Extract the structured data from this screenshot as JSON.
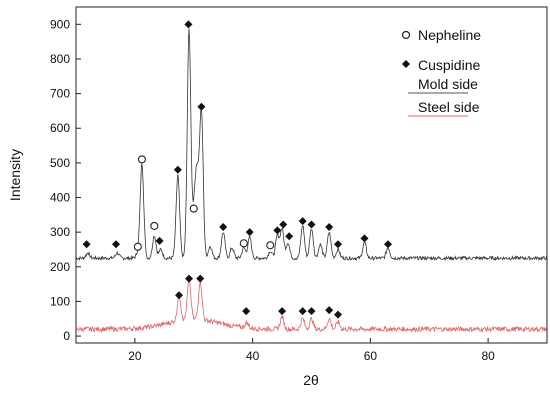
{
  "chart_data": {
    "type": "line",
    "xlabel": "2θ",
    "ylabel": "Intensity",
    "xlim": [
      10,
      90
    ],
    "ylim": [
      -20,
      950
    ],
    "x_ticks": [
      20,
      40,
      60,
      80
    ],
    "x_tick_labels": [
      "20",
      "40",
      "60",
      "80"
    ],
    "y_ticks": [
      0,
      100,
      200,
      300,
      400,
      500,
      600,
      700,
      800,
      900
    ],
    "y_tick_labels": [
      "0",
      "100",
      "200",
      "300",
      "400",
      "500",
      "600",
      "700",
      "800",
      "900"
    ],
    "grid": false,
    "legend_position": "top-right",
    "legend": [
      {
        "label": "Nepheline",
        "marker": "open-circle"
      },
      {
        "label": "Cuspidine",
        "marker": "filled-diamond"
      },
      {
        "label": "Mold side",
        "line_color": "#555555"
      },
      {
        "label": "Steel side",
        "line_color": "#e06666"
      }
    ],
    "series": [
      {
        "name": "Mold side",
        "color": "#333333",
        "baseline": 225,
        "peaks": [
          {
            "x": 12.0,
            "y": 240
          },
          {
            "x": 17.0,
            "y": 240
          },
          {
            "x": 20.5,
            "y": 238
          },
          {
            "x": 21.2,
            "y": 500
          },
          {
            "x": 23.3,
            "y": 290
          },
          {
            "x": 24.4,
            "y": 250
          },
          {
            "x": 27.3,
            "y": 465
          },
          {
            "x": 29.2,
            "y": 890
          },
          {
            "x": 30.1,
            "y": 360
          },
          {
            "x": 30.6,
            "y": 440
          },
          {
            "x": 31.3,
            "y": 645
          },
          {
            "x": 32.8,
            "y": 260
          },
          {
            "x": 35.0,
            "y": 300
          },
          {
            "x": 36.5,
            "y": 255
          },
          {
            "x": 38.5,
            "y": 255
          },
          {
            "x": 39.5,
            "y": 285
          },
          {
            "x": 43.0,
            "y": 245
          },
          {
            "x": 44.2,
            "y": 290
          },
          {
            "x": 45.0,
            "y": 310
          },
          {
            "x": 46.0,
            "y": 270
          },
          {
            "x": 48.5,
            "y": 320
          },
          {
            "x": 50.0,
            "y": 310
          },
          {
            "x": 51.5,
            "y": 265
          },
          {
            "x": 53.0,
            "y": 300
          },
          {
            "x": 54.5,
            "y": 250
          },
          {
            "x": 59.0,
            "y": 270
          },
          {
            "x": 63.0,
            "y": 255
          }
        ]
      },
      {
        "name": "Steel side",
        "color": "#e06666",
        "baseline": 20,
        "peaks": [
          {
            "x": 27.5,
            "y": 95
          },
          {
            "x": 29.2,
            "y": 135
          },
          {
            "x": 31.1,
            "y": 130
          },
          {
            "x": 39.0,
            "y": 35
          },
          {
            "x": 45.0,
            "y": 55
          },
          {
            "x": 48.5,
            "y": 50
          },
          {
            "x": 50.0,
            "y": 50
          },
          {
            "x": 53.0,
            "y": 50
          },
          {
            "x": 54.5,
            "y": 40
          }
        ]
      }
    ],
    "annotations": {
      "nepheline": [
        {
          "x": 21.2,
          "y": 510
        },
        {
          "x": 23.3,
          "y": 318
        },
        {
          "x": 20.5,
          "y": 258
        },
        {
          "x": 30.0,
          "y": 368
        },
        {
          "x": 38.5,
          "y": 268
        },
        {
          "x": 43.0,
          "y": 262
        }
      ],
      "cuspidine": [
        {
          "x": 11.8,
          "y": 265
        },
        {
          "x": 16.8,
          "y": 265
        },
        {
          "x": 24.2,
          "y": 275
        },
        {
          "x": 27.3,
          "y": 480
        },
        {
          "x": 29.1,
          "y": 900
        },
        {
          "x": 31.3,
          "y": 662
        },
        {
          "x": 35.0,
          "y": 315
        },
        {
          "x": 39.5,
          "y": 300
        },
        {
          "x": 44.2,
          "y": 305
        },
        {
          "x": 45.2,
          "y": 322
        },
        {
          "x": 46.2,
          "y": 288
        },
        {
          "x": 48.5,
          "y": 332
        },
        {
          "x": 50.0,
          "y": 322
        },
        {
          "x": 53.0,
          "y": 315
        },
        {
          "x": 54.5,
          "y": 265
        },
        {
          "x": 59.0,
          "y": 282
        },
        {
          "x": 63.0,
          "y": 265
        },
        {
          "x": 27.5,
          "y": 118
        },
        {
          "x": 29.2,
          "y": 166
        },
        {
          "x": 31.1,
          "y": 166
        },
        {
          "x": 38.9,
          "y": 72
        },
        {
          "x": 45.0,
          "y": 72
        },
        {
          "x": 48.5,
          "y": 72
        },
        {
          "x": 50.0,
          "y": 72
        },
        {
          "x": 53.0,
          "y": 75
        },
        {
          "x": 54.5,
          "y": 62
        }
      ]
    }
  }
}
